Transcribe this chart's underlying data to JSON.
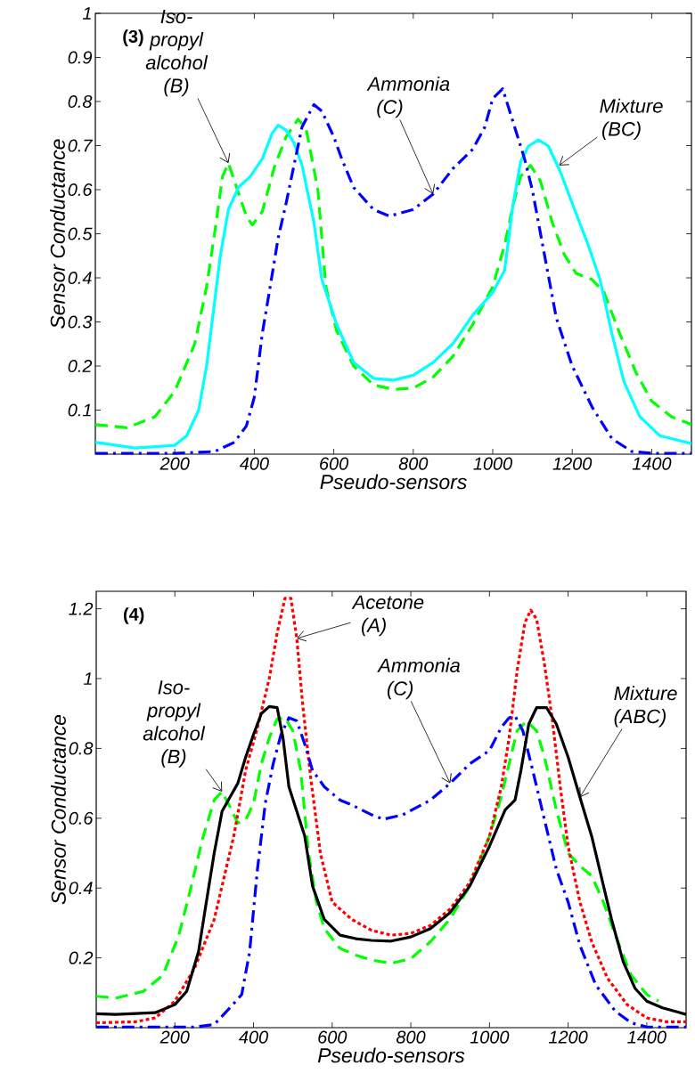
{
  "chart_data": [
    {
      "type": "line",
      "xlabel": "Pseudo-sensors",
      "ylabel": "Sensor Conductance",
      "xlim": [
        0,
        1500
      ],
      "ylim": [
        0,
        1
      ],
      "xticks": [
        200,
        400,
        600,
        800,
        1000,
        1200,
        1400
      ],
      "yticks": [
        0.1,
        0.2,
        0.3,
        0.4,
        0.5,
        0.6,
        0.7,
        0.8,
        0.9,
        1
      ],
      "series": [
        {
          "color": "#00ff00",
          "line_style": "dashed",
          "x": [
            0,
            80,
            150,
            200,
            250,
            280,
            300,
            320,
            335,
            350,
            380,
            395,
            420,
            450,
            480,
            510,
            530,
            560,
            580,
            607,
            650,
            700,
            750,
            800,
            850,
            900,
            950,
            1000,
            1030,
            1050,
            1070,
            1095,
            1120,
            1150,
            1180,
            1210,
            1250,
            1280,
            1320,
            1360,
            1400,
            1450,
            1500
          ],
          "values": [
            0.067,
            0.06,
            0.085,
            0.143,
            0.25,
            0.38,
            0.5,
            0.63,
            0.66,
            0.62,
            0.54,
            0.52,
            0.55,
            0.65,
            0.72,
            0.76,
            0.74,
            0.6,
            0.38,
            0.28,
            0.2,
            0.157,
            0.147,
            0.15,
            0.175,
            0.222,
            0.295,
            0.38,
            0.475,
            0.56,
            0.63,
            0.655,
            0.62,
            0.525,
            0.453,
            0.41,
            0.396,
            0.367,
            0.273,
            0.186,
            0.12,
            0.085,
            0.067
          ]
        },
        {
          "color": "#00ffff",
          "line_style": "solid",
          "x": [
            0,
            100,
            200,
            230,
            260,
            280,
            300,
            315,
            335,
            360,
            390,
            420,
            445,
            460,
            480,
            500,
            520,
            550,
            570,
            607,
            650,
            700,
            750,
            800,
            850,
            900,
            950,
            1000,
            1030,
            1050,
            1070,
            1090,
            1115,
            1140,
            1170,
            1200,
            1240,
            1270,
            1300,
            1330,
            1370,
            1420,
            1500
          ],
          "values": [
            0.027,
            0.014,
            0.02,
            0.042,
            0.1,
            0.2,
            0.345,
            0.453,
            0.555,
            0.605,
            0.63,
            0.67,
            0.728,
            0.746,
            0.735,
            0.706,
            0.656,
            0.526,
            0.396,
            0.295,
            0.208,
            0.172,
            0.168,
            0.179,
            0.208,
            0.251,
            0.316,
            0.367,
            0.417,
            0.56,
            0.663,
            0.699,
            0.713,
            0.699,
            0.641,
            0.569,
            0.475,
            0.396,
            0.273,
            0.165,
            0.085,
            0.042,
            0.024
          ]
        },
        {
          "color": "#0000ff",
          "line_style": "dashdot",
          "x": [
            0,
            200,
            300,
            350,
            380,
            400,
            420,
            440,
            460,
            480,
            500,
            520,
            550,
            570,
            600,
            620,
            650,
            700,
            740,
            800,
            850,
            900,
            950,
            980,
            1000,
            1025,
            1050,
            1080,
            1100,
            1130,
            1160,
            1200,
            1250,
            1300,
            1350,
            1400,
            1500
          ],
          "values": [
            0.002,
            0.002,
            0.006,
            0.027,
            0.064,
            0.129,
            0.273,
            0.38,
            0.49,
            0.569,
            0.656,
            0.742,
            0.793,
            0.778,
            0.72,
            0.67,
            0.605,
            0.555,
            0.54,
            0.555,
            0.59,
            0.648,
            0.692,
            0.742,
            0.807,
            0.829,
            0.757,
            0.67,
            0.598,
            0.453,
            0.309,
            0.2,
            0.107,
            0.035,
            0.006,
            0.002,
            0.002
          ]
        }
      ],
      "annotations": [
        "(3)",
        {
          "text": "Iso-propyl alcohol (B)",
          "x": 335,
          "y": 0.66
        },
        {
          "text": "Ammonia (C)",
          "x": 850,
          "y": 0.59
        },
        {
          "text": "Mixture (BC)",
          "x": 1167,
          "y": 0.655
        }
      ]
    },
    {
      "type": "line",
      "xlabel": "Pseudo-sensors",
      "ylabel": "Sensor Conductance",
      "xlim": [
        0,
        1500
      ],
      "ylim": [
        0,
        1.25
      ],
      "xticks": [
        200,
        400,
        600,
        800,
        1000,
        1200,
        1400
      ],
      "yticks": [
        0.2,
        0.4,
        0.6,
        0.8,
        1,
        1.2
      ],
      "series": [
        {
          "color": "#00ff00",
          "line_style": "dashed",
          "x": [
            0,
            50,
            120,
            170,
            210,
            240,
            270,
            300,
            320,
            340,
            360,
            380,
            400,
            420,
            440,
            460,
            480,
            500,
            520,
            540,
            560,
            580,
            620,
            660,
            700,
            750,
            800,
            850,
            900,
            950,
            1000,
            1030,
            1050,
            1070,
            1095,
            1120,
            1140,
            1170,
            1200,
            1230,
            1260,
            1290,
            1320,
            1360,
            1400,
            1430
          ],
          "values": [
            0.09,
            0.085,
            0.104,
            0.151,
            0.265,
            0.397,
            0.54,
            0.652,
            0.676,
            0.633,
            0.586,
            0.595,
            0.643,
            0.756,
            0.83,
            0.884,
            0.888,
            0.85,
            0.737,
            0.5,
            0.36,
            0.284,
            0.227,
            0.208,
            0.194,
            0.184,
            0.198,
            0.246,
            0.312,
            0.406,
            0.548,
            0.662,
            0.756,
            0.85,
            0.879,
            0.85,
            0.775,
            0.624,
            0.5,
            0.463,
            0.435,
            0.359,
            0.265,
            0.151,
            0.095,
            0.076
          ]
        },
        {
          "color": "#ff0000",
          "line_style": "dotted",
          "x": [
            0,
            100,
            150,
            200,
            250,
            300,
            350,
            380,
            410,
            440,
            460,
            480,
            495,
            510,
            525,
            545,
            570,
            600,
            630,
            650,
            700,
            750,
            800,
            850,
            900,
            950,
            1000,
            1030,
            1050,
            1070,
            1090,
            1105,
            1120,
            1140,
            1160,
            1180,
            1200,
            1230,
            1260,
            1300,
            1350,
            1400,
            1450,
            1500
          ],
          "values": [
            0.014,
            0.017,
            0.028,
            0.076,
            0.17,
            0.31,
            0.55,
            0.737,
            0.86,
            1.0,
            1.13,
            1.23,
            1.23,
            1.115,
            0.926,
            0.72,
            0.5,
            0.36,
            0.33,
            0.31,
            0.279,
            0.265,
            0.27,
            0.293,
            0.34,
            0.416,
            0.548,
            0.69,
            0.83,
            1.02,
            1.16,
            1.196,
            1.17,
            1.04,
            0.88,
            0.69,
            0.52,
            0.36,
            0.246,
            0.142,
            0.066,
            0.028,
            0.017,
            0.017
          ]
        },
        {
          "color": "#0000ff",
          "line_style": "dashdot",
          "x": [
            0,
            250,
            300,
            340,
            370,
            390,
            410,
            430,
            450,
            470,
            490,
            510,
            530,
            550,
            580,
            620,
            650,
            700,
            730,
            780,
            850,
            900,
            950,
            1000,
            1030,
            1050,
            1065,
            1085,
            1110,
            1140,
            1170,
            1200,
            1230,
            1270,
            1320,
            1360,
            1400,
            1500
          ],
          "values": [
            0.002,
            0.002,
            0.009,
            0.057,
            0.095,
            0.217,
            0.454,
            0.643,
            0.756,
            0.84,
            0.888,
            0.879,
            0.813,
            0.737,
            0.69,
            0.652,
            0.638,
            0.61,
            0.597,
            0.61,
            0.652,
            0.7,
            0.756,
            0.794,
            0.86,
            0.888,
            0.893,
            0.85,
            0.737,
            0.595,
            0.454,
            0.36,
            0.236,
            0.123,
            0.047,
            0.014,
            0.002,
            0.002
          ]
        },
        {
          "color": "#000000",
          "line_style": "solid",
          "x": [
            0,
            50,
            150,
            200,
            230,
            260,
            280,
            300,
            320,
            340,
            360,
            380,
            400,
            420,
            440,
            460,
            475,
            490,
            510,
            530,
            550,
            580,
            620,
            660,
            700,
            750,
            800,
            850,
            900,
            950,
            1000,
            1040,
            1065,
            1080,
            1100,
            1120,
            1145,
            1170,
            1200,
            1230,
            1260,
            1290,
            1310,
            1340,
            1370,
            1400,
            1440,
            1500
          ],
          "values": [
            0.04,
            0.038,
            0.043,
            0.066,
            0.104,
            0.217,
            0.36,
            0.5,
            0.62,
            0.66,
            0.7,
            0.775,
            0.84,
            0.9,
            0.92,
            0.917,
            0.83,
            0.69,
            0.62,
            0.55,
            0.406,
            0.31,
            0.265,
            0.255,
            0.25,
            0.248,
            0.26,
            0.284,
            0.33,
            0.406,
            0.52,
            0.624,
            0.652,
            0.737,
            0.87,
            0.917,
            0.917,
            0.87,
            0.775,
            0.66,
            0.548,
            0.406,
            0.312,
            0.189,
            0.113,
            0.076,
            0.057,
            0.038
          ]
        }
      ],
      "annotations": [
        "(4)",
        {
          "text": "Acetone (A)",
          "x": 510,
          "y": 1.115
        },
        {
          "text": "Iso-propyl alcohol (B)",
          "x": 320,
          "y": 0.676
        },
        {
          "text": "Ammonia (C)",
          "x": 900,
          "y": 0.7
        },
        {
          "text": "Mixture (ABC)",
          "x": 1230,
          "y": 0.66
        }
      ]
    }
  ]
}
